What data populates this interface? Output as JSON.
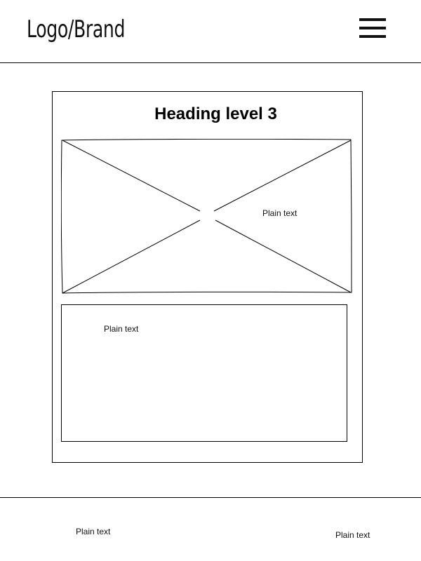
{
  "header": {
    "logo_text": "Logo/Brand",
    "menu_icon": "hamburger-menu-icon"
  },
  "card": {
    "heading": "Heading level 3",
    "image": {
      "icon": "image-placeholder-icon",
      "caption": "Plain text"
    },
    "text_box": {
      "text": "Plain text"
    }
  },
  "footer": {
    "left_text": "Plain text",
    "right_text": "Plain text"
  }
}
